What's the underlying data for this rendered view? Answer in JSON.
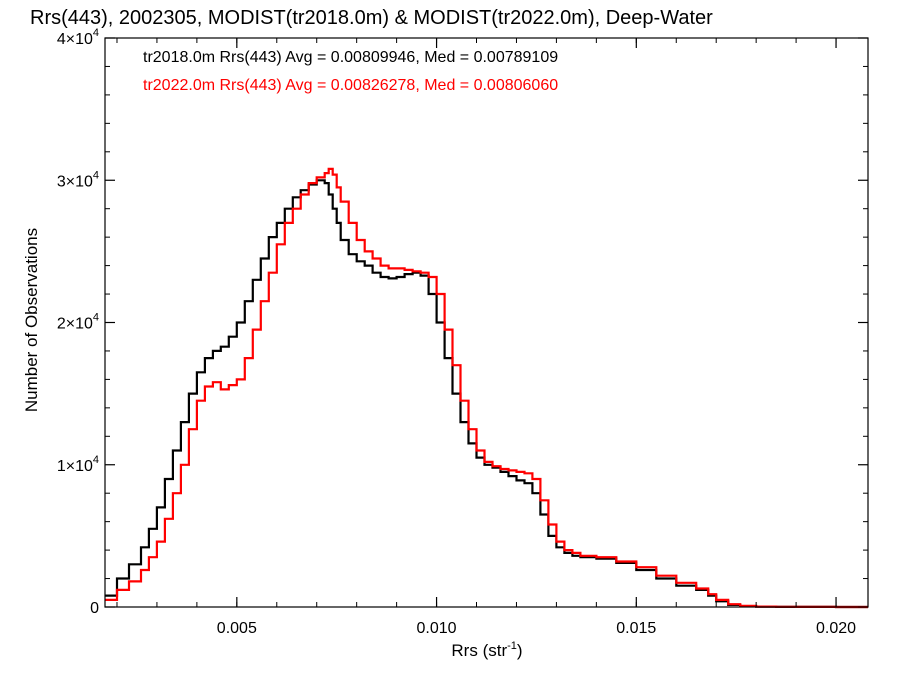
{
  "chart_data": {
    "type": "line",
    "step": true,
    "title": "Rrs(443), 2002305, MODIST(tr2018.0m) & MODIST(tr2022.0m), Deep-Water",
    "xlabel": "Rrs (str",
    "xlabel_sup": "-1",
    "xlabel_close": ")",
    "ylabel": "Number of Observations",
    "xlim": [
      0.0017,
      0.0208
    ],
    "ylim": [
      0,
      40000
    ],
    "x_ticks": [
      {
        "value": 0.005,
        "label": "0.005"
      },
      {
        "value": 0.01,
        "label": "0.010"
      },
      {
        "value": 0.015,
        "label": "0.015"
      },
      {
        "value": 0.02,
        "label": "0.020"
      }
    ],
    "y_ticks": [
      {
        "value": 0,
        "label": "0",
        "sup": ""
      },
      {
        "value": 10000,
        "label": "1×10",
        "sup": "4"
      },
      {
        "value": 20000,
        "label": "2×10",
        "sup": "4"
      },
      {
        "value": 30000,
        "label": "3×10",
        "sup": "4"
      },
      {
        "value": 40000,
        "label": "4×10",
        "sup": "4"
      }
    ],
    "legend": [
      {
        "text": "tr2018.0m Rrs(443) Avg = 0.00809946, Med = 0.00789109",
        "color": "#000000"
      },
      {
        "text": "tr2022.0m Rrs(443) Avg = 0.00826278, Med = 0.00806060",
        "color": "#ff0000"
      }
    ],
    "series": [
      {
        "color": "#000000",
        "x": [
          0.0017,
          0.002,
          0.0023,
          0.0026,
          0.0028,
          0.003,
          0.0032,
          0.0034,
          0.0036,
          0.0038,
          0.004,
          0.0042,
          0.0044,
          0.0046,
          0.0048,
          0.005,
          0.0052,
          0.0054,
          0.0056,
          0.0058,
          0.006,
          0.0062,
          0.0064,
          0.0066,
          0.0068,
          0.007,
          0.0072,
          0.0073,
          0.0074,
          0.0075,
          0.0076,
          0.0078,
          0.008,
          0.0082,
          0.0084,
          0.0086,
          0.0088,
          0.009,
          0.0092,
          0.0094,
          0.0096,
          0.0098,
          0.01,
          0.0102,
          0.0104,
          0.0106,
          0.0108,
          0.011,
          0.0112,
          0.0114,
          0.0116,
          0.0118,
          0.012,
          0.0122,
          0.0124,
          0.0126,
          0.0128,
          0.013,
          0.0132,
          0.0134,
          0.0136,
          0.014,
          0.0145,
          0.015,
          0.0155,
          0.016,
          0.0165,
          0.0168,
          0.017,
          0.0173,
          0.0176,
          0.018,
          0.0185,
          0.019,
          0.02,
          0.0208
        ],
        "y": [
          800,
          2000,
          3000,
          4200,
          5500,
          7000,
          9000,
          11000,
          13000,
          15000,
          16500,
          17500,
          18000,
          18300,
          19000,
          20000,
          21500,
          23000,
          24500,
          26000,
          27000,
          28000,
          28800,
          29300,
          29700,
          30000,
          29800,
          29000,
          28000,
          27000,
          25800,
          24800,
          24300,
          24000,
          23500,
          23200,
          23100,
          23200,
          23400,
          23500,
          23300,
          22000,
          20000,
          17500,
          15000,
          13000,
          11500,
          10500,
          10000,
          9800,
          9500,
          9200,
          8900,
          8700,
          8000,
          6500,
          5000,
          4200,
          3800,
          3600,
          3500,
          3400,
          3100,
          2600,
          2000,
          1500,
          1200,
          800,
          400,
          150,
          60,
          20,
          10,
          5,
          2,
          0
        ]
      },
      {
        "color": "#ff0000",
        "x": [
          0.0017,
          0.002,
          0.0023,
          0.0026,
          0.0028,
          0.003,
          0.0032,
          0.0034,
          0.0036,
          0.0038,
          0.004,
          0.0042,
          0.0044,
          0.0046,
          0.0048,
          0.005,
          0.0052,
          0.0054,
          0.0056,
          0.0058,
          0.006,
          0.0062,
          0.0064,
          0.0066,
          0.0068,
          0.007,
          0.0072,
          0.0073,
          0.0074,
          0.0075,
          0.0076,
          0.0078,
          0.008,
          0.0082,
          0.0084,
          0.0086,
          0.0088,
          0.009,
          0.0092,
          0.0094,
          0.0096,
          0.0098,
          0.01,
          0.0102,
          0.0104,
          0.0106,
          0.0108,
          0.011,
          0.0112,
          0.0114,
          0.0116,
          0.0118,
          0.012,
          0.0122,
          0.0124,
          0.0126,
          0.0128,
          0.013,
          0.0132,
          0.0134,
          0.0136,
          0.014,
          0.0145,
          0.015,
          0.0155,
          0.016,
          0.0165,
          0.0168,
          0.017,
          0.0173,
          0.0176,
          0.018,
          0.0185,
          0.019,
          0.02,
          0.0208
        ],
        "y": [
          500,
          1200,
          1800,
          2600,
          3500,
          4600,
          6200,
          8000,
          10000,
          12500,
          14500,
          15500,
          15800,
          15300,
          15600,
          16000,
          17500,
          19500,
          21500,
          23500,
          25500,
          27000,
          28000,
          29000,
          29800,
          30200,
          30500,
          30800,
          30400,
          29500,
          28500,
          27000,
          25800,
          25000,
          24500,
          24000,
          23800,
          23800,
          23700,
          23600,
          23500,
          23200,
          22000,
          19500,
          17000,
          14500,
          12500,
          11000,
          10200,
          9900,
          9700,
          9600,
          9500,
          9400,
          9000,
          7500,
          5800,
          4600,
          4000,
          3800,
          3600,
          3500,
          3200,
          2800,
          2200,
          1700,
          1300,
          900,
          500,
          200,
          80,
          30,
          15,
          5,
          2,
          0
        ]
      }
    ]
  }
}
